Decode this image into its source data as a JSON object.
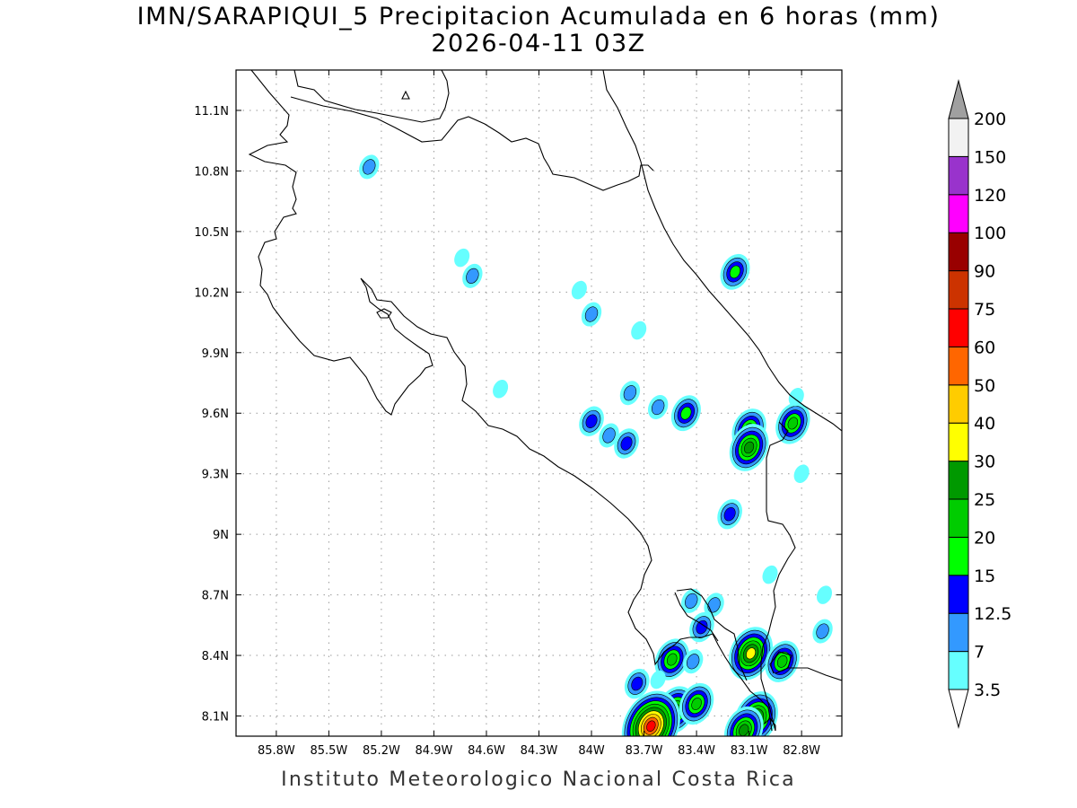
{
  "title_line1": "IMN/SARAPIQUI_5 Precipitacion Acumulada en 6 horas (mm)",
  "title_line2": "2026-04-11 03Z",
  "footer": "Instituto Meteorologico Nacional Costa Rica",
  "map": {
    "lon_range": [
      -86.03,
      -82.57
    ],
    "lat_range": [
      8.0,
      11.3
    ],
    "lon_ticks": [
      "85.8W",
      "85.5W",
      "85.2W",
      "84.9W",
      "84.6W",
      "84.3W",
      "84W",
      "83.7W",
      "83.4W",
      "83.1W",
      "82.8W"
    ],
    "lon_tick_values": [
      -85.8,
      -85.5,
      -85.2,
      -84.9,
      -84.6,
      -84.3,
      -84.0,
      -83.7,
      -83.4,
      -83.1,
      -82.8
    ],
    "lat_ticks": [
      "8.1N",
      "8.4N",
      "8.7N",
      "9N",
      "9.3N",
      "9.6N",
      "9.9N",
      "10.2N",
      "10.5N",
      "10.8N",
      "11.1N"
    ],
    "lat_tick_values": [
      8.1,
      8.4,
      8.7,
      9.0,
      9.3,
      9.6,
      9.9,
      10.2,
      10.5,
      10.8,
      11.1
    ],
    "grid": true
  },
  "colorbar": {
    "labels": [
      "3.5",
      "7",
      "12.5",
      "15",
      "20",
      "25",
      "30",
      "40",
      "50",
      "60",
      "75",
      "90",
      "100",
      "120",
      "150",
      "200"
    ],
    "colors": [
      "#66ffff",
      "#3399ff",
      "#0000ff",
      "#00ff00",
      "#00cc00",
      "#009900",
      "#ffff00",
      "#ffcc00",
      "#ff6600",
      "#ff0000",
      "#cc3300",
      "#990000",
      "#ff00ff",
      "#9933cc",
      "#f2f2f2"
    ],
    "arrow_top_color": "#a0a0a0",
    "arrow_bottom_color": "#ffffff"
  },
  "precip_cells": [
    {
      "lon": -85.27,
      "lat": 10.82,
      "max": 7
    },
    {
      "lon": -84.74,
      "lat": 10.37,
      "max": 3.5
    },
    {
      "lon": -84.68,
      "lat": 10.28,
      "max": 7
    },
    {
      "lon": -84.07,
      "lat": 10.21,
      "max": 3.5
    },
    {
      "lon": -84.0,
      "lat": 10.09,
      "max": 7
    },
    {
      "lon": -83.73,
      "lat": 10.01,
      "max": 3.5
    },
    {
      "lon": -83.18,
      "lat": 10.3,
      "max": 15
    },
    {
      "lon": -84.52,
      "lat": 9.72,
      "max": 3.5
    },
    {
      "lon": -83.78,
      "lat": 9.7,
      "max": 7
    },
    {
      "lon": -83.62,
      "lat": 9.63,
      "max": 7
    },
    {
      "lon": -83.46,
      "lat": 9.6,
      "max": 15
    },
    {
      "lon": -84.0,
      "lat": 9.56,
      "max": 12.5
    },
    {
      "lon": -83.9,
      "lat": 9.49,
      "max": 7
    },
    {
      "lon": -83.8,
      "lat": 9.45,
      "max": 12.5
    },
    {
      "lon": -83.1,
      "lat": 9.52,
      "max": 20
    },
    {
      "lon": -83.1,
      "lat": 9.43,
      "max": 25
    },
    {
      "lon": -82.85,
      "lat": 9.55,
      "max": 20
    },
    {
      "lon": -82.83,
      "lat": 9.68,
      "max": 3.5
    },
    {
      "lon": -82.8,
      "lat": 9.3,
      "max": 3.5
    },
    {
      "lon": -83.21,
      "lat": 9.1,
      "max": 12.5
    },
    {
      "lon": -82.98,
      "lat": 8.8,
      "max": 3.5
    },
    {
      "lon": -83.43,
      "lat": 8.67,
      "max": 7
    },
    {
      "lon": -83.3,
      "lat": 8.65,
      "max": 7
    },
    {
      "lon": -83.37,
      "lat": 8.54,
      "max": 12.5
    },
    {
      "lon": -82.67,
      "lat": 8.7,
      "max": 3.5
    },
    {
      "lon": -82.68,
      "lat": 8.52,
      "max": 7
    },
    {
      "lon": -83.09,
      "lat": 8.41,
      "max": 30
    },
    {
      "lon": -83.54,
      "lat": 8.38,
      "max": 20
    },
    {
      "lon": -83.42,
      "lat": 8.37,
      "max": 7
    },
    {
      "lon": -82.91,
      "lat": 8.37,
      "max": 20
    },
    {
      "lon": -83.74,
      "lat": 8.26,
      "max": 12.5
    },
    {
      "lon": -83.62,
      "lat": 8.28,
      "max": 3.5
    },
    {
      "lon": -83.52,
      "lat": 8.13,
      "max": 25
    },
    {
      "lon": -83.4,
      "lat": 8.16,
      "max": 20
    },
    {
      "lon": -83.66,
      "lat": 8.05,
      "max": 60
    },
    {
      "lon": -83.06,
      "lat": 8.09,
      "max": 30
    },
    {
      "lon": -83.13,
      "lat": 8.03,
      "max": 25
    }
  ]
}
